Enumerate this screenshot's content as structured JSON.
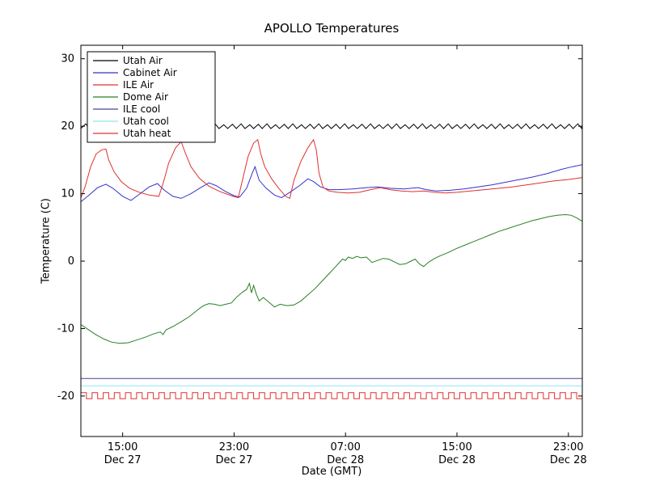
{
  "chart_data": {
    "type": "line",
    "title": "APOLLO Temperatures",
    "xlabel": "Date (GMT)",
    "ylabel": "Temperature (C)",
    "x_unit": "hours from Dec 27 12:00 GMT",
    "xlim": [
      0,
      36
    ],
    "ylim": [
      -26,
      32
    ],
    "yticks": [
      -20,
      -10,
      0,
      10,
      20,
      30
    ],
    "xticks": [
      {
        "x": 3,
        "time": "15:00",
        "date": "Dec 27"
      },
      {
        "x": 11,
        "time": "23:00",
        "date": "Dec 27"
      },
      {
        "x": 19,
        "time": "07:00",
        "date": "Dec 28"
      },
      {
        "x": 27,
        "time": "15:00",
        "date": "Dec 28"
      },
      {
        "x": 35,
        "time": "23:00",
        "date": "Dec 28"
      }
    ],
    "legend": {
      "position": "upper-left"
    },
    "series": [
      {
        "name": "Utah Air",
        "color": "#000000",
        "gen": {
          "type": "sawtooth",
          "base": 19.9,
          "amp": 0.45,
          "period": 0.62,
          "x_start": 0,
          "x_end": 36
        }
      },
      {
        "name": "Cabinet Air",
        "color": "#3333cc",
        "points": [
          [
            0,
            8.8
          ],
          [
            0.6,
            9.8
          ],
          [
            1.2,
            10.9
          ],
          [
            1.8,
            11.4
          ],
          [
            2.3,
            10.8
          ],
          [
            3.0,
            9.6
          ],
          [
            3.6,
            9.0
          ],
          [
            4.2,
            9.9
          ],
          [
            4.9,
            11.0
          ],
          [
            5.5,
            11.5
          ],
          [
            6.0,
            10.5
          ],
          [
            6.6,
            9.6
          ],
          [
            7.2,
            9.3
          ],
          [
            7.9,
            10.0
          ],
          [
            8.6,
            10.9
          ],
          [
            9.2,
            11.6
          ],
          [
            9.7,
            11.2
          ],
          [
            10.4,
            10.3
          ],
          [
            11.0,
            9.7
          ],
          [
            11.4,
            9.5
          ],
          [
            11.9,
            10.8
          ],
          [
            12.3,
            13.0
          ],
          [
            12.5,
            14.0
          ],
          [
            12.8,
            12.0
          ],
          [
            13.3,
            10.8
          ],
          [
            13.9,
            9.8
          ],
          [
            14.4,
            9.4
          ],
          [
            15.0,
            10.2
          ],
          [
            15.7,
            11.2
          ],
          [
            16.3,
            12.2
          ],
          [
            16.7,
            11.8
          ],
          [
            17.2,
            11.0
          ],
          [
            17.8,
            10.6
          ],
          [
            18.5,
            10.6
          ],
          [
            19.5,
            10.7
          ],
          [
            20.5,
            10.9
          ],
          [
            21.3,
            11.0
          ],
          [
            22.2,
            10.8
          ],
          [
            23.2,
            10.7
          ],
          [
            24.2,
            10.9
          ],
          [
            24.8,
            10.6
          ],
          [
            25.5,
            10.4
          ],
          [
            26.5,
            10.5
          ],
          [
            27.5,
            10.7
          ],
          [
            28.5,
            11.0
          ],
          [
            29.5,
            11.3
          ],
          [
            30.5,
            11.7
          ],
          [
            31.5,
            12.1
          ],
          [
            32.5,
            12.5
          ],
          [
            33.5,
            13.0
          ],
          [
            34.5,
            13.6
          ],
          [
            35.3,
            14.0
          ],
          [
            36,
            14.3
          ]
        ]
      },
      {
        "name": "ILE Air",
        "color": "#e03030",
        "points": [
          [
            0,
            9.4
          ],
          [
            0.3,
            11.0
          ],
          [
            0.7,
            14.0
          ],
          [
            1.1,
            15.9
          ],
          [
            1.5,
            16.5
          ],
          [
            1.8,
            16.6
          ],
          [
            2.0,
            15.0
          ],
          [
            2.4,
            13.2
          ],
          [
            2.9,
            11.8
          ],
          [
            3.5,
            10.8
          ],
          [
            4.2,
            10.2
          ],
          [
            4.9,
            9.8
          ],
          [
            5.6,
            9.6
          ],
          [
            5.9,
            11.5
          ],
          [
            6.3,
            14.5
          ],
          [
            6.8,
            16.8
          ],
          [
            7.2,
            17.7
          ],
          [
            7.5,
            16.0
          ],
          [
            7.9,
            14.0
          ],
          [
            8.5,
            12.3
          ],
          [
            9.2,
            11.1
          ],
          [
            10.0,
            10.3
          ],
          [
            10.8,
            9.7
          ],
          [
            11.3,
            9.4
          ],
          [
            11.6,
            12.0
          ],
          [
            12.0,
            15.5
          ],
          [
            12.4,
            17.5
          ],
          [
            12.7,
            18.0
          ],
          [
            12.9,
            16.0
          ],
          [
            13.2,
            14.0
          ],
          [
            13.7,
            12.2
          ],
          [
            14.2,
            10.8
          ],
          [
            14.7,
            9.6
          ],
          [
            15.0,
            9.3
          ],
          [
            15.3,
            12.0
          ],
          [
            15.8,
            14.8
          ],
          [
            16.3,
            16.8
          ],
          [
            16.7,
            18.0
          ],
          [
            16.9,
            16.5
          ],
          [
            17.1,
            13.0
          ],
          [
            17.4,
            10.9
          ],
          [
            17.8,
            10.4
          ],
          [
            18.4,
            10.2
          ],
          [
            19.2,
            10.1
          ],
          [
            20.0,
            10.2
          ],
          [
            20.8,
            10.6
          ],
          [
            21.5,
            10.9
          ],
          [
            22.2,
            10.6
          ],
          [
            23.0,
            10.4
          ],
          [
            23.8,
            10.3
          ],
          [
            24.6,
            10.4
          ],
          [
            25.4,
            10.2
          ],
          [
            26.2,
            10.1
          ],
          [
            27.0,
            10.2
          ],
          [
            28.0,
            10.4
          ],
          [
            29.0,
            10.6
          ],
          [
            30.0,
            10.8
          ],
          [
            31.0,
            11.0
          ],
          [
            32.0,
            11.3
          ],
          [
            33.0,
            11.6
          ],
          [
            34.0,
            11.9
          ],
          [
            35.0,
            12.1
          ],
          [
            36,
            12.4
          ]
        ]
      },
      {
        "name": "Dome Air",
        "color": "#277f27",
        "points": [
          [
            0,
            -9.4
          ],
          [
            0.5,
            -10.1
          ],
          [
            1.0,
            -10.8
          ],
          [
            1.6,
            -11.5
          ],
          [
            2.2,
            -12.0
          ],
          [
            2.8,
            -12.2
          ],
          [
            3.4,
            -12.1
          ],
          [
            4.0,
            -11.7
          ],
          [
            4.6,
            -11.3
          ],
          [
            5.2,
            -10.8
          ],
          [
            5.7,
            -10.5
          ],
          [
            5.9,
            -10.9
          ],
          [
            6.1,
            -10.2
          ],
          [
            6.6,
            -9.7
          ],
          [
            7.2,
            -9.0
          ],
          [
            7.8,
            -8.2
          ],
          [
            8.4,
            -7.2
          ],
          [
            8.8,
            -6.6
          ],
          [
            9.2,
            -6.3
          ],
          [
            9.6,
            -6.4
          ],
          [
            10.0,
            -6.6
          ],
          [
            10.4,
            -6.4
          ],
          [
            10.8,
            -6.2
          ],
          [
            11.2,
            -5.3
          ],
          [
            11.6,
            -4.6
          ],
          [
            11.9,
            -4.2
          ],
          [
            12.1,
            -3.3
          ],
          [
            12.25,
            -4.7
          ],
          [
            12.4,
            -3.6
          ],
          [
            12.6,
            -4.9
          ],
          [
            12.8,
            -5.9
          ],
          [
            13.1,
            -5.4
          ],
          [
            13.5,
            -6.1
          ],
          [
            13.9,
            -6.8
          ],
          [
            14.3,
            -6.4
          ],
          [
            14.8,
            -6.6
          ],
          [
            15.3,
            -6.5
          ],
          [
            15.8,
            -5.9
          ],
          [
            16.3,
            -5.0
          ],
          [
            16.8,
            -4.1
          ],
          [
            17.3,
            -3.0
          ],
          [
            17.8,
            -1.9
          ],
          [
            18.3,
            -0.8
          ],
          [
            18.6,
            -0.1
          ],
          [
            18.8,
            0.3
          ],
          [
            19.0,
            0.1
          ],
          [
            19.2,
            0.6
          ],
          [
            19.5,
            0.4
          ],
          [
            19.8,
            0.7
          ],
          [
            20.1,
            0.5
          ],
          [
            20.5,
            0.6
          ],
          [
            20.9,
            -0.2
          ],
          [
            21.3,
            0.1
          ],
          [
            21.7,
            0.4
          ],
          [
            22.1,
            0.3
          ],
          [
            22.5,
            -0.1
          ],
          [
            22.9,
            -0.5
          ],
          [
            23.3,
            -0.4
          ],
          [
            23.7,
            0.0
          ],
          [
            24.0,
            0.3
          ],
          [
            24.3,
            -0.4
          ],
          [
            24.6,
            -0.8
          ],
          [
            25.0,
            -0.1
          ],
          [
            25.4,
            0.4
          ],
          [
            25.8,
            0.8
          ],
          [
            26.4,
            1.3
          ],
          [
            27.0,
            1.9
          ],
          [
            27.6,
            2.4
          ],
          [
            28.2,
            2.9
          ],
          [
            28.8,
            3.4
          ],
          [
            29.4,
            3.9
          ],
          [
            30.0,
            4.4
          ],
          [
            30.6,
            4.8
          ],
          [
            31.2,
            5.2
          ],
          [
            31.8,
            5.6
          ],
          [
            32.4,
            6.0
          ],
          [
            33.0,
            6.3
          ],
          [
            33.6,
            6.6
          ],
          [
            34.2,
            6.8
          ],
          [
            34.8,
            6.9
          ],
          [
            35.2,
            6.8
          ],
          [
            35.6,
            6.4
          ],
          [
            36,
            5.9
          ]
        ]
      },
      {
        "name": "ILE cool",
        "color": "#44449b",
        "gen": {
          "type": "flat",
          "y": -17.4,
          "x_start": 0,
          "x_end": 36
        }
      },
      {
        "name": "Utah cool",
        "color": "#90e8ee",
        "gen": {
          "type": "flat",
          "y": -18.5,
          "x_start": 0,
          "x_end": 36
        }
      },
      {
        "name": "Utah heat",
        "color": "#e03030",
        "gen": {
          "type": "square",
          "low": -20.4,
          "high": -19.5,
          "period": 0.8,
          "duty": 0.5,
          "x_start": 0,
          "x_end": 36
        }
      }
    ]
  }
}
